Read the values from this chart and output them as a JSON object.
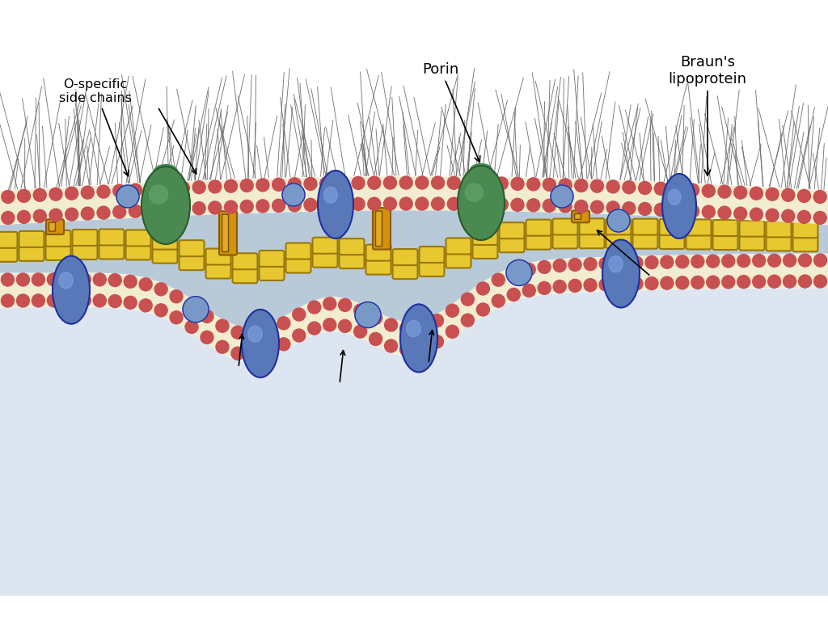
{
  "bg_color": "#ffffff",
  "periplasm_color": "#b8cad8",
  "cytoplasm_color": "#dde5f0",
  "lipid_head_color": "#c85050",
  "lipid_tail_color": "#f2ecd0",
  "lipid_line_color": "#c0a840",
  "murein_color": "#e8c830",
  "murein_edge_color": "#9a7808",
  "green_protein_color": "#4a8a50",
  "green_protein_highlight": "#6aaa70",
  "green_protein_edge": "#2a5a30",
  "blue_protein_color": "#5878b8",
  "blue_protein_highlight": "#88a8e8",
  "blue_protein_edge": "#2030a0",
  "small_blue_color": "#7898c8",
  "orange_color": "#d4920a",
  "orange_edge": "#8a5a00",
  "orange_highlight": "#f0c040",
  "fur_color": "#606060",
  "arrow_color": "#111111",
  "label_o_specific": "O-specific\nside chains",
  "label_porin": "Porin",
  "label_braun": "Braun's\nlipoprotein"
}
